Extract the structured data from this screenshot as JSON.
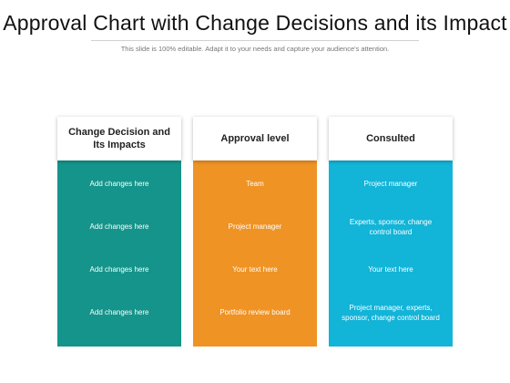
{
  "title": "Approval Chart with Change Decisions and its Impact",
  "subtitle": "This slide is 100% editable. Adapt it to your needs and capture your audience's attention.",
  "columns": [
    {
      "header": "Change Decision and Its Impacts",
      "color": "#14948a",
      "items": [
        "Add changes here",
        "Add changes here",
        "Add changes here",
        "Add changes here"
      ]
    },
    {
      "header": "Approval level",
      "color": "#ef9324",
      "items": [
        "Team",
        "Project manager",
        "Your text here",
        "Portfolio review board"
      ]
    },
    {
      "header": "Consulted",
      "color": "#12b4d8",
      "items": [
        "Project manager",
        "Experts, sponsor, change control board",
        "Your text here",
        "Project manager, experts, sponsor, change control board"
      ]
    }
  ]
}
